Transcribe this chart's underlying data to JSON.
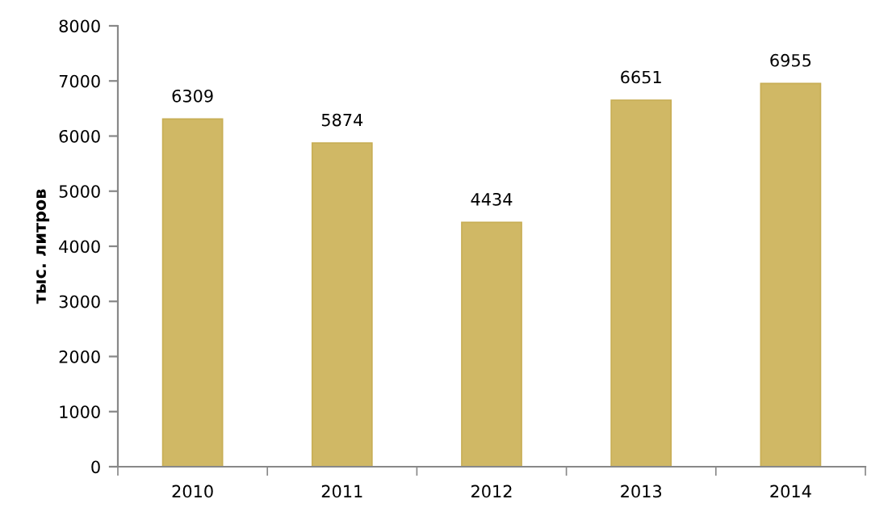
{
  "chart_data": {
    "type": "bar",
    "ylabel": "тыс. литров",
    "categories": [
      "2010",
      "2011",
      "2012",
      "2013",
      "2014"
    ],
    "values": [
      6309,
      5874,
      4434,
      6651,
      6955
    ],
    "color": "#d0b865",
    "ylim": [
      0,
      8000
    ],
    "yticks": [
      0,
      1000,
      2000,
      3000,
      4000,
      5000,
      6000,
      7000,
      8000
    ],
    "data_labels": true,
    "grid": false,
    "legend": false
  }
}
